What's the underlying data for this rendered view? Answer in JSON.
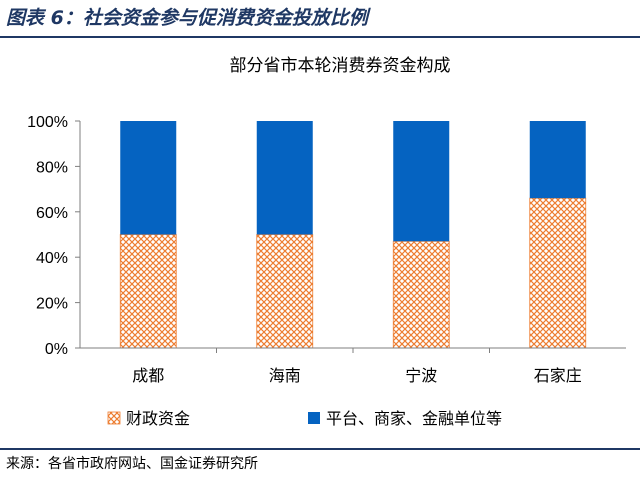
{
  "figure": {
    "title": "图表 6：社会资金参与促消费资金投放比例",
    "source": "来源：各省市政府网站、国金证券研究所"
  },
  "colors": {
    "title_navy": "#1f3864",
    "fiscal_orange": "#ed7d31",
    "platform_blue": "#0563c1"
  },
  "chart_data": {
    "type": "bar",
    "stacked": true,
    "title": "部分省市本轮消费券资金构成",
    "categories": [
      "成都",
      "海南",
      "宁波",
      "石家庄"
    ],
    "series": [
      {
        "name": "财政资金",
        "values": [
          50,
          50,
          47,
          66
        ],
        "pattern": "orange-crosshatch"
      },
      {
        "name": "平台、商家、金融单位等",
        "values": [
          50,
          50,
          53,
          34
        ],
        "pattern": "solid-blue"
      }
    ],
    "ylim": [
      0,
      100
    ],
    "yticks": [
      "0%",
      "20%",
      "40%",
      "60%",
      "80%",
      "100%"
    ],
    "xlabel": "",
    "ylabel": "",
    "grid": false,
    "legend_position": "bottom"
  }
}
